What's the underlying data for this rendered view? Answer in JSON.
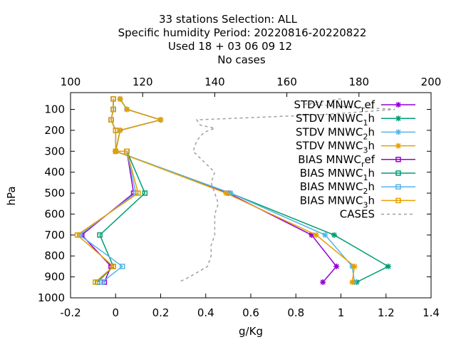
{
  "chart_data": {
    "type": "line",
    "title_lines": [
      "33 stations Selection: ALL",
      "Specific humidity  Period: 20220816-20220822",
      "Used  18 + 03 06 09 12",
      "No cases"
    ],
    "xlabel": "g/Kg",
    "ylabel": "hPa",
    "xlim": [
      -0.2,
      1.4
    ],
    "ylim": [
      1000,
      20
    ],
    "x_ticks": [
      "-0.2",
      "0",
      "0.2",
      "0.4",
      "0.6",
      "0.8",
      "1",
      "1.2",
      "1.4"
    ],
    "y_ticks": [
      "100",
      "200",
      "300",
      "400",
      "500",
      "600",
      "700",
      "800",
      "900",
      "1000"
    ],
    "x2lim": [
      100,
      200
    ],
    "x2_ticks": [
      "100",
      "120",
      "140",
      "160",
      "180",
      "200"
    ],
    "legend_position": "top-right",
    "grid": false,
    "series": [
      {
        "name_base": "STDV MNWC",
        "name_sub": "r",
        "name_suffix": "ef",
        "color": "#9400d3",
        "marker": "star",
        "dash": false,
        "points": [
          [
            0.02,
            50
          ],
          [
            0.05,
            100
          ],
          [
            0.2,
            150
          ],
          [
            0.02,
            200
          ],
          [
            0.0,
            300
          ],
          [
            0.5,
            500
          ],
          [
            0.87,
            700
          ],
          [
            0.98,
            850
          ],
          [
            0.92,
            925
          ]
        ]
      },
      {
        "name_base": "STDV MNWC",
        "name_sub": "1",
        "name_suffix": "h",
        "color": "#009e73",
        "marker": "star",
        "dash": false,
        "points": [
          [
            0.02,
            50
          ],
          [
            0.05,
            100
          ],
          [
            0.2,
            150
          ],
          [
            0.02,
            200
          ],
          [
            0.0,
            300
          ],
          [
            0.51,
            500
          ],
          [
            0.97,
            700
          ],
          [
            1.21,
            850
          ],
          [
            1.07,
            925
          ]
        ]
      },
      {
        "name_base": "STDV MNWC",
        "name_sub": "2",
        "name_suffix": "h",
        "color": "#56b4e9",
        "marker": "star",
        "dash": false,
        "points": [
          [
            0.02,
            50
          ],
          [
            0.05,
            100
          ],
          [
            0.2,
            150
          ],
          [
            0.02,
            200
          ],
          [
            0.0,
            300
          ],
          [
            0.51,
            500
          ],
          [
            0.93,
            700
          ],
          [
            1.05,
            850
          ],
          [
            1.06,
            925
          ]
        ]
      },
      {
        "name_base": "STDV MNWC",
        "name_sub": "3",
        "name_suffix": "h",
        "color": "#e69f00",
        "marker": "star",
        "dash": false,
        "points": [
          [
            0.02,
            50
          ],
          [
            0.05,
            100
          ],
          [
            0.2,
            150
          ],
          [
            0.02,
            200
          ],
          [
            0.0,
            300
          ],
          [
            0.49,
            500
          ],
          [
            0.89,
            700
          ],
          [
            1.06,
            850
          ],
          [
            1.05,
            925
          ]
        ]
      },
      {
        "name_base": "BIAS MNWC",
        "name_sub": "r",
        "name_suffix": "ef",
        "color": "#9400d3",
        "marker": "square",
        "dash": false,
        "points": [
          [
            -0.01,
            50
          ],
          [
            -0.01,
            100
          ],
          [
            -0.02,
            150
          ],
          [
            0.0,
            200
          ],
          [
            0.0,
            300
          ],
          [
            0.05,
            300
          ],
          [
            0.08,
            500
          ],
          [
            -0.15,
            700
          ],
          [
            -0.02,
            850
          ],
          [
            -0.05,
            925
          ]
        ]
      },
      {
        "name_base": "BIAS MNWC",
        "name_sub": "1",
        "name_suffix": "h",
        "color": "#009e73",
        "marker": "square",
        "dash": false,
        "points": [
          [
            -0.01,
            50
          ],
          [
            -0.01,
            100
          ],
          [
            -0.02,
            150
          ],
          [
            0.0,
            200
          ],
          [
            0.0,
            300
          ],
          [
            0.05,
            300
          ],
          [
            0.13,
            500
          ],
          [
            -0.07,
            700
          ],
          [
            -0.01,
            850
          ],
          [
            -0.08,
            925
          ]
        ]
      },
      {
        "name_base": "BIAS MNWC",
        "name_sub": "2",
        "name_suffix": "h",
        "color": "#56b4e9",
        "marker": "square",
        "dash": false,
        "points": [
          [
            -0.01,
            50
          ],
          [
            -0.01,
            100
          ],
          [
            -0.02,
            150
          ],
          [
            0.0,
            200
          ],
          [
            0.0,
            300
          ],
          [
            0.05,
            300
          ],
          [
            0.09,
            500
          ],
          [
            -0.16,
            700
          ],
          [
            0.03,
            850
          ],
          [
            -0.06,
            925
          ]
        ]
      },
      {
        "name_base": "BIAS MNWC",
        "name_sub": "3",
        "name_suffix": "h",
        "color": "#e69f00",
        "marker": "square",
        "dash": false,
        "points": [
          [
            -0.01,
            50
          ],
          [
            -0.01,
            100
          ],
          [
            -0.02,
            150
          ],
          [
            0.0,
            200
          ],
          [
            0.0,
            300
          ],
          [
            0.05,
            300
          ],
          [
            0.1,
            500
          ],
          [
            -0.17,
            700
          ],
          [
            -0.01,
            850
          ],
          [
            -0.09,
            925
          ]
        ]
      },
      {
        "name_base": "CASES",
        "name_sub": "",
        "name_suffix": "",
        "color": "#a0a0a0",
        "marker": "none",
        "dash": true,
        "axis": "x2",
        "points": [
          [
            175,
            50
          ],
          [
            165,
            75
          ],
          [
            190,
            100
          ],
          [
            170,
            125
          ],
          [
            135,
            150
          ],
          [
            136,
            175
          ],
          [
            140,
            190
          ],
          [
            137,
            210
          ],
          [
            135,
            250
          ],
          [
            134,
            300
          ],
          [
            137,
            350
          ],
          [
            140,
            400
          ],
          [
            139,
            450
          ],
          [
            140,
            500
          ],
          [
            141,
            550
          ],
          [
            140,
            600
          ],
          [
            140,
            650
          ],
          [
            140,
            700
          ],
          [
            139,
            750
          ],
          [
            139,
            800
          ],
          [
            138,
            850
          ],
          [
            133,
            900
          ],
          [
            130,
            925
          ]
        ]
      }
    ]
  }
}
